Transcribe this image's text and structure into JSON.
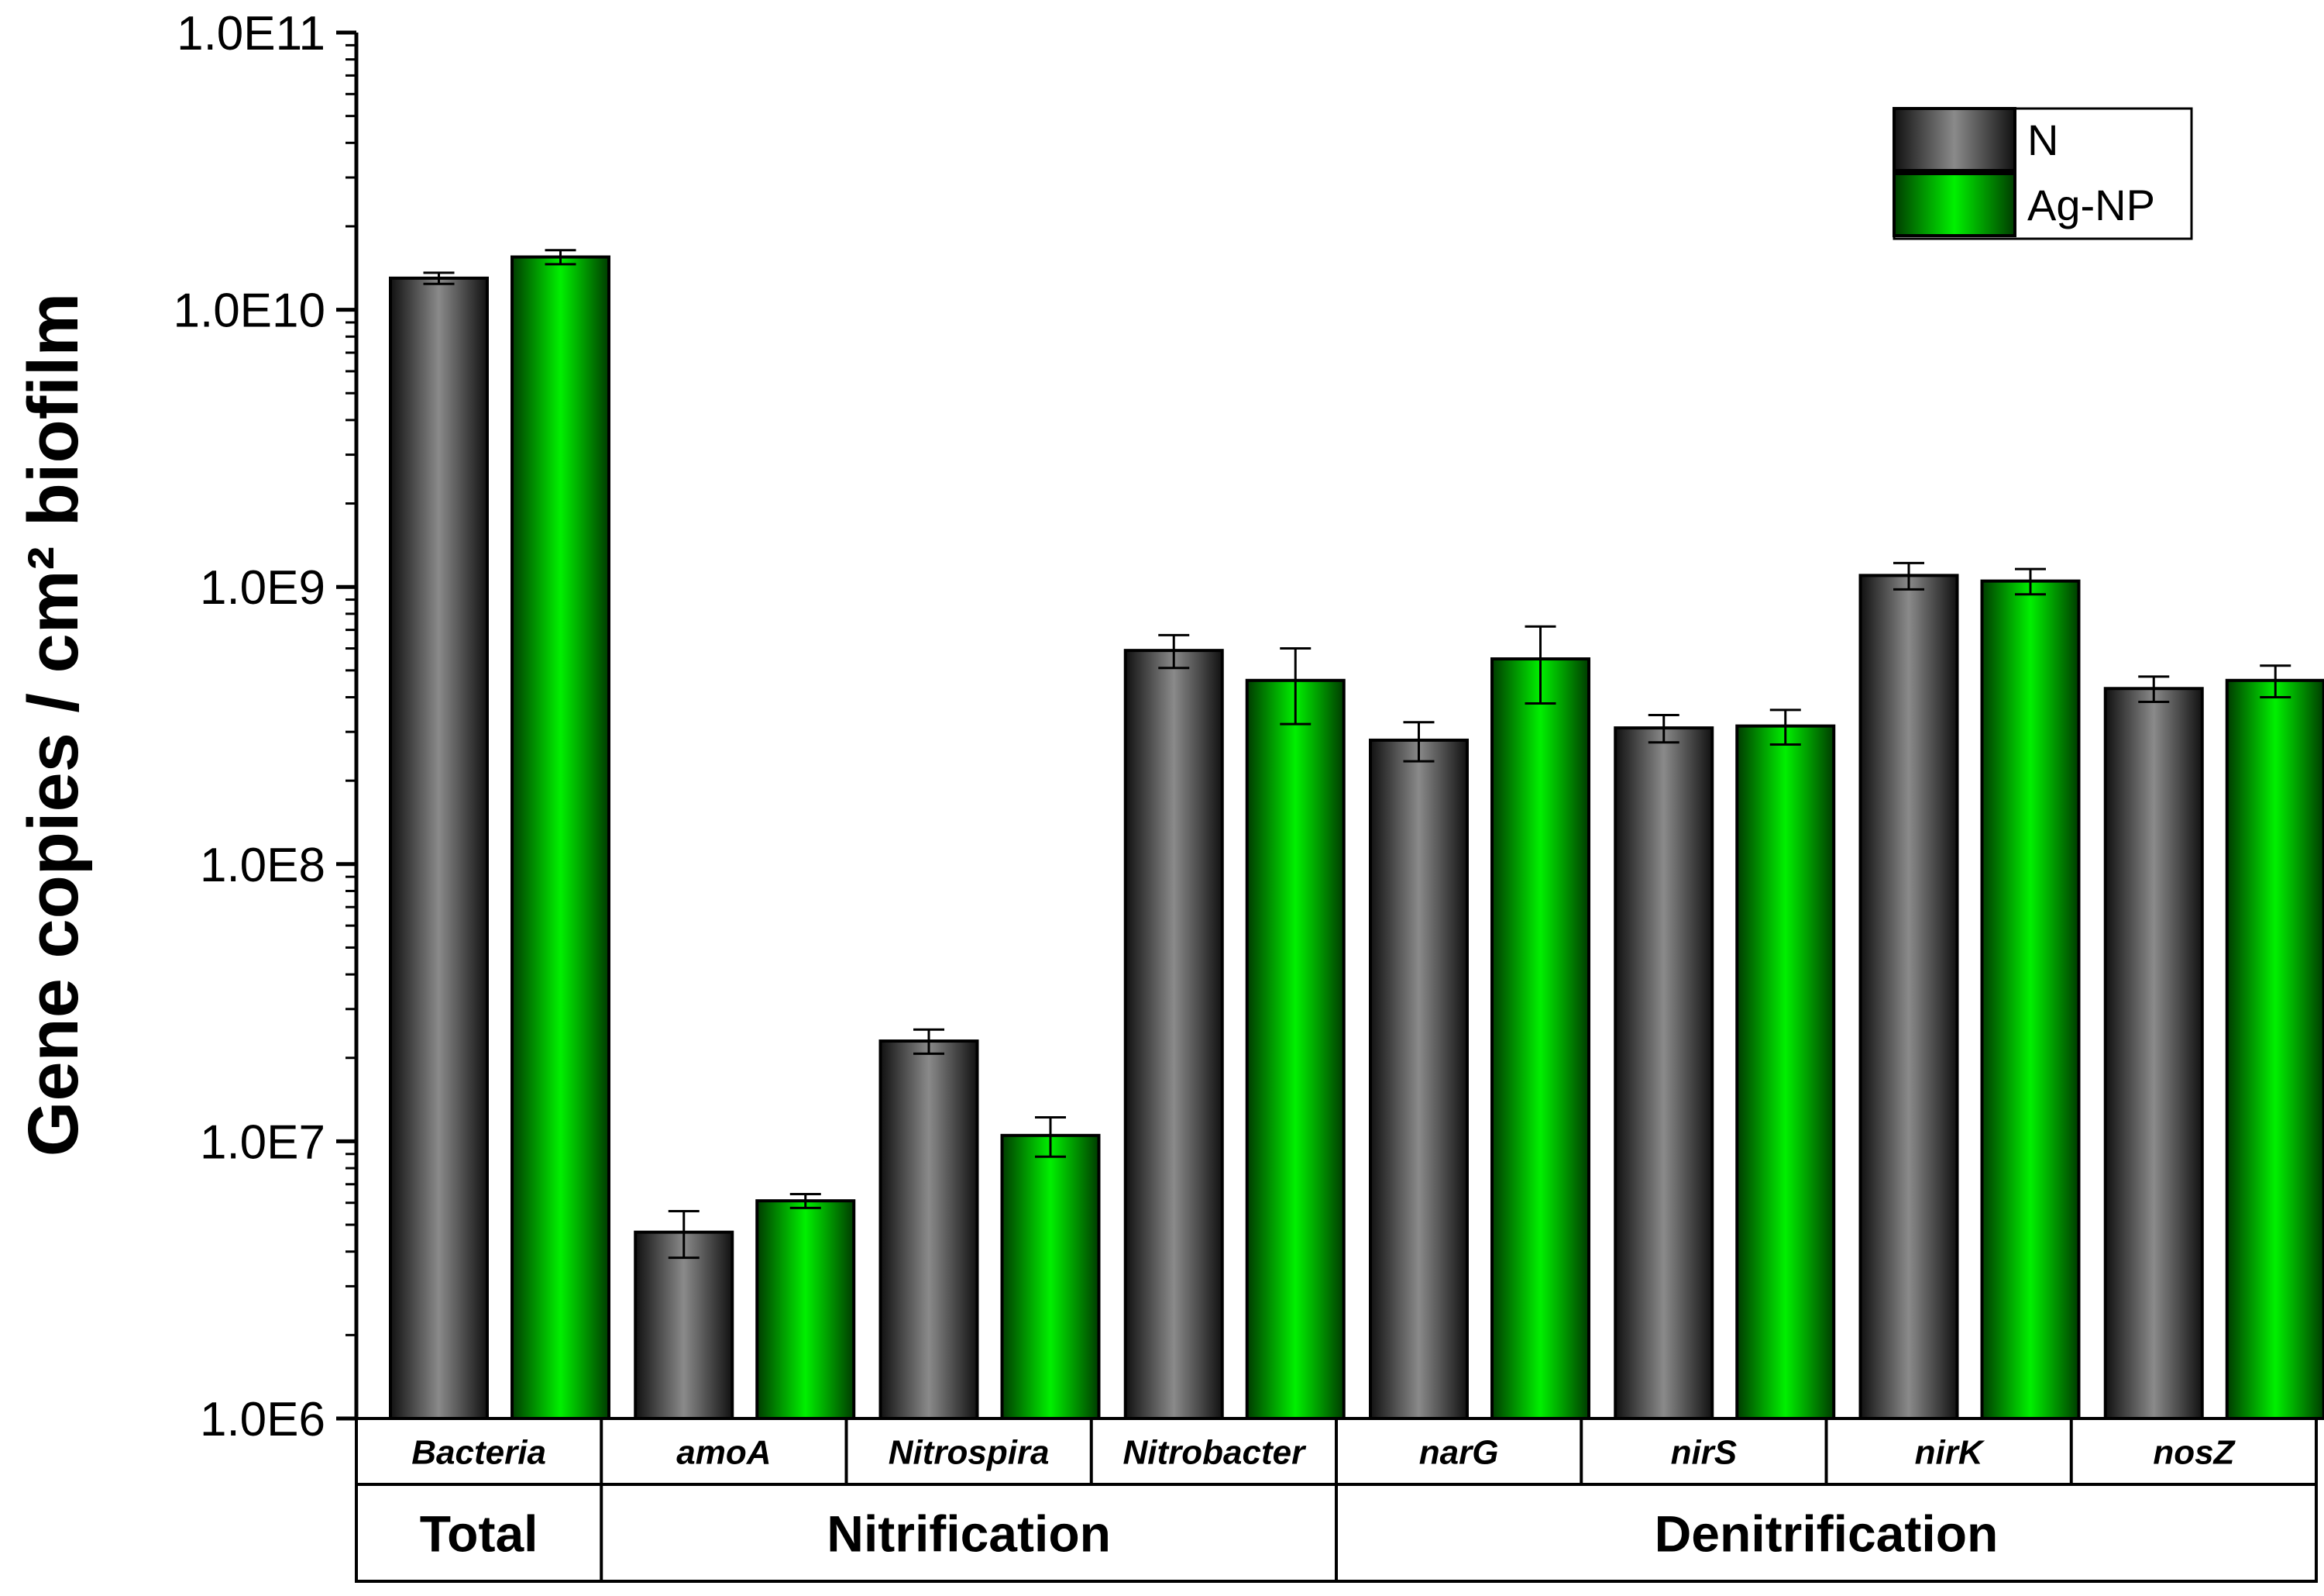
{
  "chart_data": {
    "type": "bar",
    "ylabel": "Gene copies / cm² biofilm",
    "yscale": "log",
    "ylim": [
      1000000,
      100000000000
    ],
    "yticks": [
      "1.0E6",
      "1.0E7",
      "1.0E8",
      "1.0E9",
      "1.0E10",
      "1.0E11"
    ],
    "categories": [
      "Bacteria",
      "amoA",
      "Nitrospira",
      "Nitrobacter",
      "narG",
      "nirS",
      "nirK",
      "nosZ"
    ],
    "groups": [
      {
        "label": "Total",
        "span": 1
      },
      {
        "label": "Nitrification",
        "span": 3
      },
      {
        "label": "Denitrification",
        "span": 4
      }
    ],
    "series": [
      {
        "name": "N",
        "color": "#7f7f7f",
        "values": [
          13000000000,
          4700000,
          23000000,
          590000000,
          280000000,
          310000000,
          1100000000,
          430000000
        ],
        "errors": [
          600000000,
          900000,
          2300000,
          80000000,
          45000000,
          35000000,
          120000000,
          45000000
        ]
      },
      {
        "name": "Ag-NP",
        "color": "#00ee00",
        "values": [
          15500000000,
          6100000,
          10500000,
          460000000,
          550000000,
          315000000,
          1050000000,
          460000000
        ],
        "errors": [
          900000000,
          350000,
          1700000,
          140000000,
          170000000,
          45000000,
          110000000,
          60000000
        ]
      }
    ],
    "legend": {
      "position": "top-right"
    },
    "grid": false
  }
}
